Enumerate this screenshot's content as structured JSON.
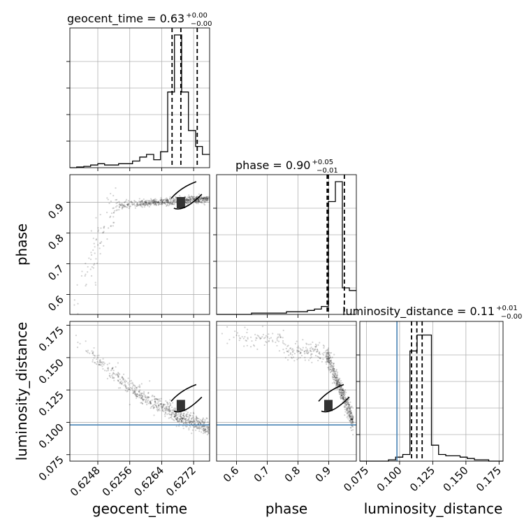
{
  "chart_data": {
    "type": "corner",
    "grid": true,
    "truth_color": "#4682b4",
    "sample_color": "#000000",
    "panels": {
      "geocent_time": {
        "title": "geocent_time = 0.63",
        "title_sup": "+0.00",
        "title_sub": "−0.00",
        "range": [
          0.6241,
          0.6276
        ],
        "ticks": [
          "0.6248",
          "0.6256",
          "0.6264",
          "0.6272"
        ],
        "tick_values": [
          0.6248,
          0.6256,
          0.6264,
          0.6272
        ],
        "xlabel": "geocent_time",
        "quantiles": [
          0.62666,
          0.62688,
          0.62729
        ],
        "hist_edges": [
          0.6241,
          0.62427,
          0.62445,
          0.62462,
          0.6248,
          0.62497,
          0.62515,
          0.62532,
          0.6255,
          0.62567,
          0.62585,
          0.62602,
          0.6262,
          0.62637,
          0.62655,
          0.62672,
          0.6269,
          0.62707,
          0.62725,
          0.62742,
          0.6276
        ],
        "hist_values": [
          0,
          0.005,
          0.01,
          0.02,
          0.03,
          0.02,
          0.02,
          0.03,
          0.03,
          0.05,
          0.08,
          0.1,
          0.06,
          0.12,
          0.57,
          1.0,
          0.57,
          0.28,
          0.16,
          0.1
        ]
      },
      "phase": {
        "title": "phase = 0.90",
        "title_sup": "+0.05",
        "title_sub": "−0.01",
        "range": [
          0.535,
          0.99
        ],
        "ticks": [
          "0.6",
          "0.7",
          "0.8",
          "0.9"
        ],
        "tick_values": [
          0.6,
          0.7,
          0.8,
          0.9
        ],
        "xlabel": "phase",
        "ylabel": "phase",
        "quantiles": [
          0.895,
          0.899,
          0.951
        ],
        "hist_edges": [
          0.535,
          0.5578,
          0.5805,
          0.6033,
          0.626,
          0.6488,
          0.6715,
          0.6943,
          0.717,
          0.7398,
          0.7625,
          0.7853,
          0.808,
          0.8308,
          0.8535,
          0.8763,
          0.899,
          0.9218,
          0.9445,
          0.9673,
          0.99
        ],
        "hist_values": [
          0,
          0,
          0,
          0,
          0,
          0.01,
          0.01,
          0.01,
          0.01,
          0.01,
          0.02,
          0.02,
          0.02,
          0.03,
          0.04,
          0.06,
          0.85,
          1.0,
          0.2,
          0.18
        ]
      },
      "luminosity_distance": {
        "title": "luminosity_distance = 0.11",
        "title_sup": "+0.01",
        "title_sub": "−0.00",
        "range": [
          0.07,
          0.178
        ],
        "ticks": [
          "0.075",
          "0.100",
          "0.125",
          "0.150",
          "0.175"
        ],
        "tick_values": [
          0.075,
          0.1,
          0.125,
          0.15,
          0.175
        ],
        "xlabel": "luminosity_distance",
        "ylabel": "luminosity_distance",
        "truth": 0.098,
        "quantiles": [
          0.109,
          0.113,
          0.117
        ],
        "hist_edges": [
          0.07,
          0.0754,
          0.0808,
          0.0862,
          0.0916,
          0.097,
          0.1024,
          0.1078,
          0.1132,
          0.1186,
          0.124,
          0.1294,
          0.1348,
          0.1402,
          0.1456,
          0.151,
          0.1564,
          0.1618,
          0.1672,
          0.1726,
          0.178
        ],
        "hist_values": [
          0,
          0,
          0,
          0,
          0.01,
          0.03,
          0.05,
          0.83,
          0.95,
          0.95,
          0.12,
          0.05,
          0.04,
          0.04,
          0.03,
          0.02,
          0.01,
          0.01,
          0,
          0
        ]
      }
    }
  }
}
